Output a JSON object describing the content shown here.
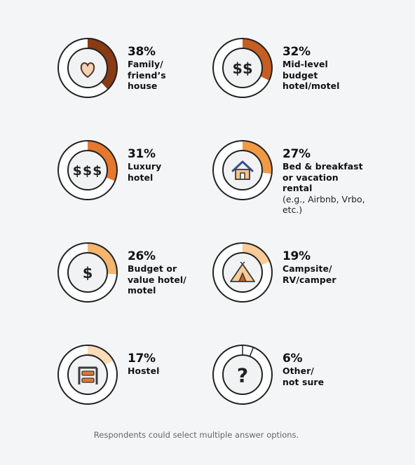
{
  "chart_data": {
    "type": "donut-grid",
    "title": "",
    "items": [
      {
        "value": 38,
        "pct_label": "38%",
        "label": "Family/ friend’s house",
        "lines": [
          "Family/",
          "friend’s",
          "house"
        ],
        "note": [],
        "icon": "heart-icon",
        "color": "#8a3a14"
      },
      {
        "value": 32,
        "pct_label": "32%",
        "label": "Mid-level budget hotel/motel",
        "lines": [
          "Mid-level",
          "budget",
          "hotel/motel"
        ],
        "note": [],
        "icon": "two-dollar-icon",
        "color": "#c45e22"
      },
      {
        "value": 31,
        "pct_label": "31%",
        "label": "Luxury hotel",
        "lines": [
          "Luxury",
          "hotel"
        ],
        "note": [],
        "icon": "three-dollar-icon",
        "color": "#e4782e"
      },
      {
        "value": 27,
        "pct_label": "27%",
        "label": "Bed & breakfast or vacation rental",
        "lines": [
          "Bed & breakfast",
          "or vacation",
          "rental"
        ],
        "note": [
          "(e.g., Airbnb, Vrbo,",
          "etc.)"
        ],
        "icon": "house-icon",
        "color": "#f09a45"
      },
      {
        "value": 26,
        "pct_label": "26%",
        "label": "Budget or value hotel/ motel",
        "lines": [
          "Budget or",
          "value hotel/",
          "motel"
        ],
        "note": [],
        "icon": "dollar-icon",
        "color": "#f3b56f"
      },
      {
        "value": 19,
        "pct_label": "19%",
        "label": "Campsite/ RV/camper",
        "lines": [
          "Campsite/",
          "RV/camper"
        ],
        "note": [],
        "icon": "tent-icon",
        "color": "#f8cb97"
      },
      {
        "value": 17,
        "pct_label": "17%",
        "label": "Hostel",
        "lines": [
          "Hostel"
        ],
        "note": [],
        "icon": "bunk-bed-icon",
        "color": "#fbdcba"
      },
      {
        "value": 6,
        "pct_label": "6%",
        "label": "Other/ not sure",
        "lines": [
          "Other/",
          "not sure"
        ],
        "note": [],
        "icon": "question-mark-icon",
        "color": "#ffffff"
      }
    ]
  },
  "footnote": "Respondents could select multiple answer options."
}
